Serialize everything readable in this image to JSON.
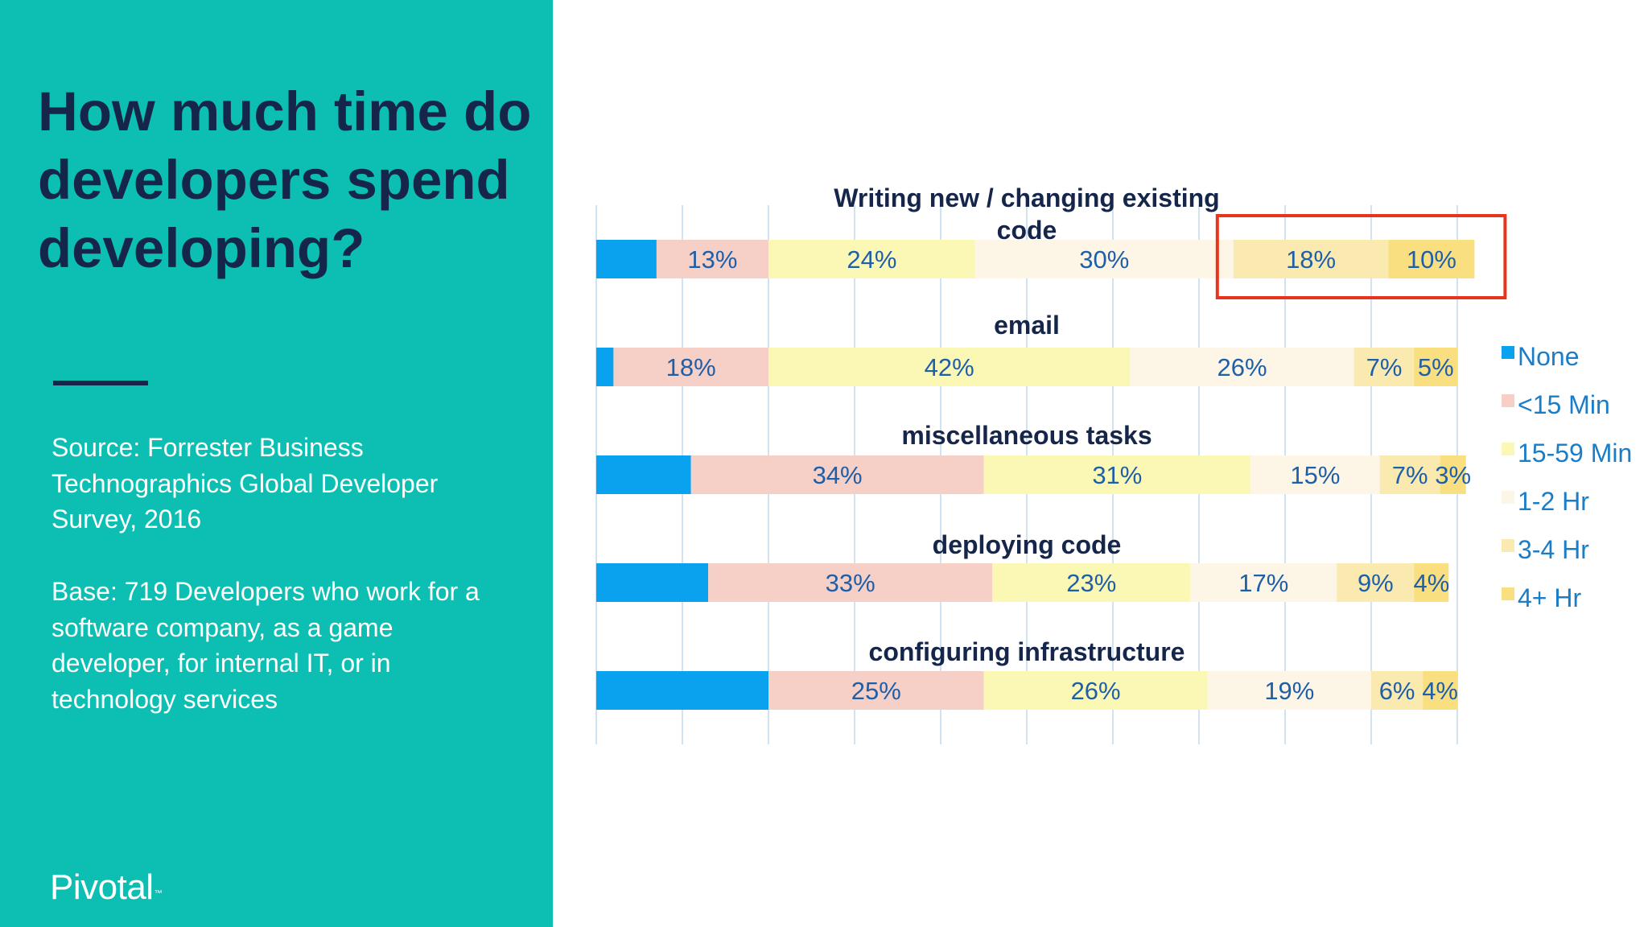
{
  "slide": {
    "title": "How much time do developers spend developing?",
    "source": "Source: Forrester Business Technographics Global Developer Survey, 2016",
    "base": "Base: 719 Developers who work for a software company, as a game developer, for internal IT, or in technology services",
    "logo": "Pivotal"
  },
  "colors": {
    "panel": "#0dbfb3",
    "title_text": "#15264a",
    "highlight_box": "#e8341c",
    "gridline": "#cfe3f2"
  },
  "chart_data": {
    "type": "bar",
    "orientation": "horizontal",
    "stacked": true,
    "categories": [
      "Writing new / changing existing code",
      "email",
      "miscellaneous tasks",
      "deploying code",
      "configuring infrastructure"
    ],
    "series": [
      {
        "name": "None",
        "color": "#0aa2ee",
        "values": [
          7,
          2,
          11,
          13,
          20
        ],
        "labels": [
          "",
          "",
          "",
          "",
          ""
        ]
      },
      {
        "name": "<15 Min",
        "color": "#f6cfc6",
        "values": [
          13,
          18,
          34,
          33,
          25
        ],
        "labels": [
          "13%",
          "18%",
          "34%",
          "33%",
          "25%"
        ]
      },
      {
        "name": "15-59 Min",
        "color": "#fbf8b6",
        "values": [
          24,
          42,
          31,
          23,
          26
        ],
        "labels": [
          "24%",
          "42%",
          "31%",
          "23%",
          "26%"
        ]
      },
      {
        "name": "1-2 Hr",
        "color": "#fdf6e6",
        "values": [
          30,
          26,
          15,
          17,
          19
        ],
        "labels": [
          "30%",
          "26%",
          "15%",
          "17%",
          "19%"
        ]
      },
      {
        "name": "3-4 Hr",
        "color": "#faeab0",
        "values": [
          18,
          7,
          7,
          9,
          6
        ],
        "labels": [
          "18%",
          "7%",
          "7%",
          "9%",
          "6%"
        ]
      },
      {
        "name": "4+ Hr",
        "color": "#fadf80",
        "values": [
          10,
          5,
          3,
          4,
          4
        ],
        "labels": [
          "10%",
          "5%",
          "3%",
          "4%",
          "4%"
        ]
      }
    ],
    "xlim": [
      0,
      100
    ],
    "grid": true,
    "legend_position": "right",
    "highlight": {
      "category": "Writing new / changing existing code",
      "series": [
        "3-4 Hr",
        "4+ Hr"
      ]
    }
  }
}
